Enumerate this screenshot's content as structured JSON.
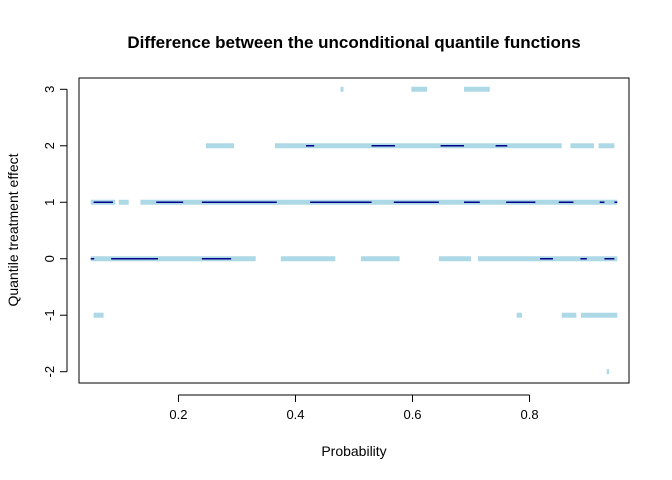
{
  "chart_data": {
    "type": "scatter",
    "title": "Difference between the unconditional quantile functions",
    "xlabel": "Probability",
    "ylabel": "Quantile treatment effect",
    "xlim": [
      0.03,
      0.97
    ],
    "ylim": [
      -2.2,
      3.2
    ],
    "xticks": [
      "0.2",
      "0.4",
      "0.6",
      "0.8"
    ],
    "xtick_values": [
      0.2,
      0.4,
      0.6,
      0.8
    ],
    "yticks": [
      "-2",
      "-1",
      "0",
      "1",
      "2",
      "3"
    ],
    "ytick_values": [
      -2,
      -1,
      0,
      1,
      2,
      3
    ],
    "grid": false,
    "legend": "none",
    "colors": {
      "band": "#add8e6",
      "estimate": "#00008b"
    },
    "series": [
      {
        "values": [
          {
            "y": 3,
            "x_ranges": [
              [
                0.477,
                0.482
              ],
              [
                0.598,
                0.625
              ],
              [
                0.688,
                0.732
              ]
            ]
          },
          {
            "y": 2,
            "x_ranges": [
              [
                0.247,
                0.295
              ],
              [
                0.365,
                0.855
              ],
              [
                0.87,
                0.91
              ],
              [
                0.918,
                0.945
              ]
            ]
          },
          {
            "y": 1,
            "x_ranges": [
              [
                0.05,
                0.092
              ],
              [
                0.098,
                0.115
              ],
              [
                0.135,
                0.95
              ]
            ]
          },
          {
            "y": 0,
            "x_ranges": [
              [
                0.05,
                0.332
              ],
              [
                0.375,
                0.468
              ],
              [
                0.512,
                0.578
              ],
              [
                0.645,
                0.7
              ],
              [
                0.712,
                0.95
              ]
            ]
          },
          {
            "y": -1,
            "x_ranges": [
              [
                0.055,
                0.072
              ],
              [
                0.778,
                0.787
              ],
              [
                0.855,
                0.88
              ],
              [
                0.888,
                0.95
              ]
            ]
          },
          {
            "y": -2,
            "x_ranges": [
              [
                0.932,
                0.936
              ]
            ]
          }
        ]
      },
      {
        "values": [
          {
            "y": 2,
            "x_ranges": [
              [
                0.418,
                0.432
              ],
              [
                0.53,
                0.57
              ],
              [
                0.648,
                0.688
              ],
              [
                0.742,
                0.762
              ]
            ]
          },
          {
            "y": 1,
            "x_ranges": [
              [
                0.055,
                0.088
              ],
              [
                0.162,
                0.208
              ],
              [
                0.24,
                0.368
              ],
              [
                0.425,
                0.53
              ],
              [
                0.568,
                0.645
              ],
              [
                0.688,
                0.715
              ],
              [
                0.76,
                0.81
              ],
              [
                0.85,
                0.875
              ],
              [
                0.92,
                0.928
              ],
              [
                0.945,
                0.95
              ]
            ]
          },
          {
            "y": 0,
            "x_ranges": [
              [
                0.05,
                0.056
              ],
              [
                0.085,
                0.165
              ],
              [
                0.24,
                0.29
              ],
              [
                0.818,
                0.84
              ],
              [
                0.887,
                0.898
              ],
              [
                0.928,
                0.945
              ]
            ]
          }
        ]
      }
    ]
  }
}
